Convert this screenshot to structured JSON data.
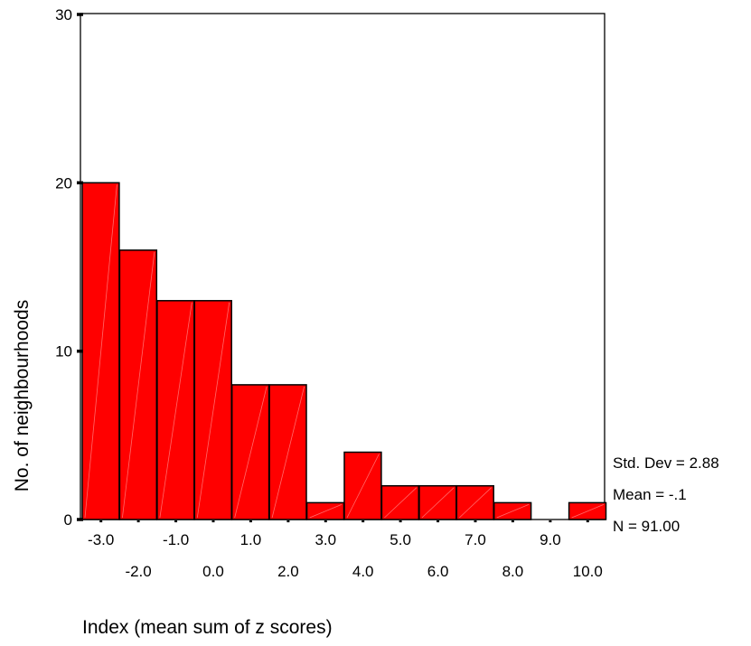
{
  "chart_data": {
    "type": "bar",
    "histogram": true,
    "xlabel": "Index (mean sum of z scores)",
    "ylabel": "No. of neighbourhoods",
    "ylim": [
      0,
      30
    ],
    "y_ticks": [
      "0",
      "10",
      "20",
      "30"
    ],
    "x": [
      -3.0,
      -2.0,
      -1.0,
      0.0,
      1.0,
      2.0,
      3.0,
      4.0,
      5.0,
      6.0,
      7.0,
      8.0,
      9.0,
      10.0
    ],
    "x_tick_labels": [
      "-3.0",
      "-2.0",
      "-1.0",
      "0.0",
      "1.0",
      "2.0",
      "3.0",
      "4.0",
      "5.0",
      "6.0",
      "7.0",
      "8.0",
      "9.0",
      "10.0"
    ],
    "values": [
      20,
      16,
      13,
      13,
      8,
      8,
      1,
      4,
      2,
      2,
      2,
      1,
      0,
      1
    ],
    "bin_width": 1.0,
    "bar_color": "#ff0000",
    "grid": false,
    "stats": {
      "std_dev": "Std. Dev = 2.88",
      "mean": "Mean = -.1",
      "n": "N = 91.00"
    }
  }
}
